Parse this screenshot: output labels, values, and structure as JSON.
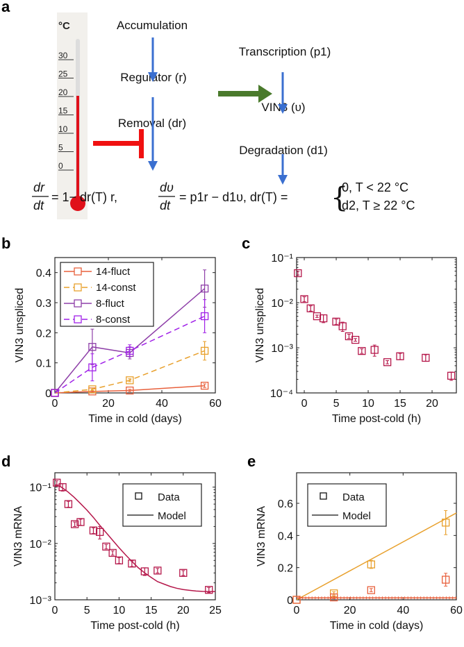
{
  "panel_labels": [
    "a",
    "b",
    "c",
    "d",
    "e"
  ],
  "diagram": {
    "thermometer_unit": "°C",
    "thermometer_ticks": [
      "30",
      "25",
      "20",
      "15",
      "10",
      "5",
      "0"
    ],
    "accumulation": "Accumulation",
    "regulator": "Regulator (r)",
    "removal": "Removal (dr)",
    "transcription": "Transcription (p1)",
    "vin3": "VIN3 (υ)",
    "degradation": "Degradation (d1)",
    "equation": {
      "f1_num": "dr",
      "f1_den": "dt",
      "rhs1": "= 1− dr(T) r,",
      "f2_num": "dυ",
      "f2_den": "dt",
      "rhs2": "= p1r − d1υ, dr(T) =",
      "case1": "0,  T < 22 °C",
      "case2": "d2,  T ≥ 22 °C"
    },
    "colors": {
      "arrow": "#3a6fd0",
      "activation": "#4a7a2c",
      "inhibition": "#f01010",
      "mercury": "#e0101a"
    }
  },
  "chart_data": [
    {
      "id": "b",
      "type": "line",
      "xlabel": "Time in cold (days)",
      "ylabel": "VIN3 unspliced",
      "xlim": [
        0,
        60
      ],
      "ylim": [
        0,
        0.45
      ],
      "xticks": [
        0,
        20,
        40,
        60
      ],
      "yticks": [
        0,
        0.1,
        0.2,
        0.3,
        0.4
      ],
      "xtick_labels": [
        "0",
        "20",
        "40",
        "60"
      ],
      "ytick_labels": [
        "0",
        "0.1",
        "0.2",
        "0.3",
        "0.4"
      ],
      "legend": "top-left",
      "series": [
        {
          "name": "14-fluct",
          "color": "#e8603c",
          "dash": false,
          "x": [
            0,
            14,
            28,
            56
          ],
          "y": [
            0,
            0.005,
            0.008,
            0.024
          ],
          "err": [
            0,
            0.003,
            0.004,
            0.006
          ]
        },
        {
          "name": "14-const",
          "color": "#e8a02c",
          "dash": true,
          "x": [
            0,
            14,
            28,
            56
          ],
          "y": [
            0,
            0.012,
            0.042,
            0.14
          ],
          "err": [
            0,
            0.004,
            0.005,
            0.031
          ]
        },
        {
          "name": "8-fluct",
          "color": "#8e3fa8",
          "dash": false,
          "x": [
            0,
            14,
            28,
            56
          ],
          "y": [
            0,
            0.153,
            0.133,
            0.347
          ],
          "err": [
            0,
            0.059,
            0.02,
            0.062
          ]
        },
        {
          "name": "8-const",
          "color": "#a020e8",
          "dash": true,
          "x": [
            0,
            14,
            28,
            56
          ],
          "y": [
            0,
            0.085,
            0.14,
            0.255
          ],
          "err": [
            0,
            0.045,
            0.02,
            0.055
          ]
        }
      ]
    },
    {
      "id": "c",
      "type": "scatter",
      "xlabel": "Time post-cold (h)",
      "ylabel": "VIN3 unspliced",
      "xlim": [
        -1.2,
        23.8
      ],
      "ylim": [
        0.0001,
        0.1
      ],
      "yscale": "log",
      "xticks": [
        0,
        5,
        10,
        15,
        20
      ],
      "xtick_labels": [
        "0",
        "5",
        "10",
        "15",
        "20"
      ],
      "yticks": [
        0.1,
        0.01,
        0.001,
        0.0001
      ],
      "ytick_labels": [
        "10⁻¹",
        "10⁻²",
        "10⁻³",
        "10⁻⁴"
      ],
      "series": [
        {
          "name": "data",
          "color": "#b5174a",
          "x": [
            -1,
            0,
            1,
            2,
            3,
            5,
            6,
            7,
            8,
            9,
            11,
            13,
            15,
            19,
            23
          ],
          "y": [
            0.045,
            0.012,
            0.0075,
            0.005,
            0.0045,
            0.0038,
            0.003,
            0.0018,
            0.0015,
            0.00085,
            0.0009,
            0.00048,
            0.00065,
            0.0006,
            0.00024
          ],
          "err": [
            0.004,
            0.0015,
            0.001,
            0.0003,
            0.0009,
            0.0005,
            0.0007,
            0.0002,
            0.0001,
            0.0001,
            0.00025,
            4e-05,
            0.0001,
            0.0001,
            5e-05
          ]
        }
      ]
    },
    {
      "id": "d",
      "type": "scatter",
      "xlabel": "Time post-cold (h)",
      "ylabel": "VIN3 mRNA",
      "xlim": [
        0,
        25
      ],
      "ylim": [
        0.001,
        0.18
      ],
      "yscale": "log",
      "xticks": [
        0,
        5,
        10,
        15,
        20,
        25
      ],
      "xtick_labels": [
        "0",
        "5",
        "10",
        "15",
        "20",
        "25"
      ],
      "yticks": [
        0.1,
        0.01,
        0.001
      ],
      "ytick_labels": [
        "10⁻¹",
        "10⁻²",
        "10⁻³"
      ],
      "legend": "top-right",
      "legend_entries": [
        "Data",
        "Model"
      ],
      "series": [
        {
          "name": "Data",
          "color": "#b5174a",
          "x": [
            0.3,
            1.2,
            2.1,
            3.1,
            4,
            6,
            7,
            8,
            9,
            10,
            12,
            14,
            16,
            20,
            24
          ],
          "y": [
            0.12,
            0.1,
            0.05,
            0.022,
            0.024,
            0.017,
            0.016,
            0.0088,
            0.0068,
            0.005,
            0.0044,
            0.0032,
            0.0033,
            0.003,
            0.0015
          ],
          "err": [
            0.01,
            0.015,
            0.006,
            0.002,
            0.003,
            0.002,
            0.004,
            0.0008,
            0.0006,
            0.0006,
            0.0005,
            0.0005,
            0.0003,
            0.0003,
            0.00015
          ]
        },
        {
          "name": "Model",
          "color": "#b5174a",
          "line": true,
          "x": [
            0,
            1,
            2,
            3,
            4,
            5,
            6,
            7,
            8,
            9,
            10,
            11,
            12,
            13,
            14,
            15,
            16,
            17,
            18,
            19,
            20,
            21,
            22,
            23,
            24,
            25
          ],
          "y": [
            0.11,
            0.1,
            0.083,
            0.066,
            0.051,
            0.039,
            0.029,
            0.021,
            0.0155,
            0.0114,
            0.0084,
            0.0063,
            0.0048,
            0.0037,
            0.003,
            0.0025,
            0.0021,
            0.0019,
            0.00172,
            0.0016,
            0.00152,
            0.00147,
            0.00143,
            0.00141,
            0.0014,
            0.0014
          ]
        }
      ]
    },
    {
      "id": "e",
      "type": "scatter",
      "xlabel": "Time in cold (days)",
      "ylabel": "VIN3 mRNA",
      "xlim": [
        0,
        60
      ],
      "ylim": [
        0,
        0.79
      ],
      "xticks": [
        0,
        20,
        40,
        60
      ],
      "xtick_labels": [
        "0",
        "20",
        "40",
        "60"
      ],
      "yticks": [
        0,
        0.2,
        0.4,
        0.6
      ],
      "ytick_labels": [
        "0",
        "0.2",
        "0.4",
        "0.6"
      ],
      "legend": "top-left",
      "legend_entries": [
        "Data",
        "Model"
      ],
      "series": [
        {
          "name": "Data (yellow)",
          "color": "#e8a02c",
          "x": [
            0,
            14,
            28,
            56
          ],
          "y": [
            0,
            0.04,
            0.22,
            0.48
          ],
          "err": [
            0,
            0.01,
            0.025,
            0.075
          ]
        },
        {
          "name": "Data (red)",
          "color": "#e8603c",
          "x": [
            0,
            14,
            28,
            56
          ],
          "y": [
            0,
            0.015,
            0.06,
            0.125
          ],
          "err": [
            0,
            0.008,
            0.01,
            0.04
          ]
        },
        {
          "name": "Model (yellow)",
          "color": "#e8a02c",
          "line": true,
          "x": [
            0,
            60
          ],
          "y": [
            0,
            0.54
          ]
        },
        {
          "name": "Model (red)",
          "color": "#e8603c",
          "line": true,
          "x": [
            0,
            60
          ],
          "y": [
            0.012,
            0.012
          ]
        }
      ]
    }
  ]
}
